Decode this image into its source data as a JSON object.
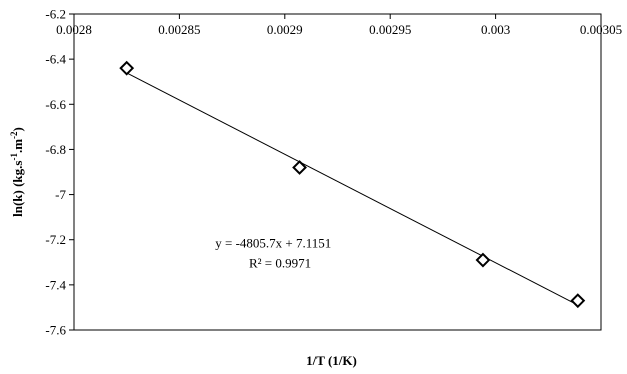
{
  "chart_data": {
    "type": "scatter",
    "xlabel": "1/T (1/K)",
    "ylabel_parts": [
      "ln(k)  (kg.s",
      "-1",
      ".m",
      "-2",
      ")"
    ],
    "xlim": [
      0.0028,
      0.00305
    ],
    "ylim": [
      -7.6,
      -6.2
    ],
    "x_ticks": [
      {
        "value": 0.0028,
        "label": "0.0028"
      },
      {
        "value": 0.00285,
        "label": "0.00285"
      },
      {
        "value": 0.0029,
        "label": "0.0029"
      },
      {
        "value": 0.00295,
        "label": "0.00295"
      },
      {
        "value": 0.003,
        "label": "0.003"
      },
      {
        "value": 0.00305,
        "label": "0.00305"
      }
    ],
    "y_ticks": [
      {
        "value": -6.2,
        "label": "-6.2"
      },
      {
        "value": -6.4,
        "label": "-6.4"
      },
      {
        "value": -6.6,
        "label": "-6.6"
      },
      {
        "value": -6.8,
        "label": "-6.8"
      },
      {
        "value": -7.0,
        "label": "-7"
      },
      {
        "value": -7.2,
        "label": "-7.2"
      },
      {
        "value": -7.4,
        "label": "-7.4"
      },
      {
        "value": -7.6,
        "label": "-7.6"
      }
    ],
    "x_axis_labels_position": "top",
    "grid": false,
    "series": [
      {
        "marker": "open-diamond",
        "points": [
          {
            "x": 0.002825,
            "y": -6.44
          },
          {
            "x": 0.002907,
            "y": -6.88
          },
          {
            "x": 0.002994,
            "y": -7.29
          },
          {
            "x": 0.003039,
            "y": -7.47
          }
        ]
      }
    ],
    "trendline": {
      "type": "linear",
      "slope": -4805.7,
      "intercept": 7.1151,
      "x_range": [
        0.002825,
        0.003039
      ]
    },
    "annotations": {
      "equation": "y = -4805.7x + 7.1151",
      "r_squared": "R² = 0.9971"
    }
  }
}
